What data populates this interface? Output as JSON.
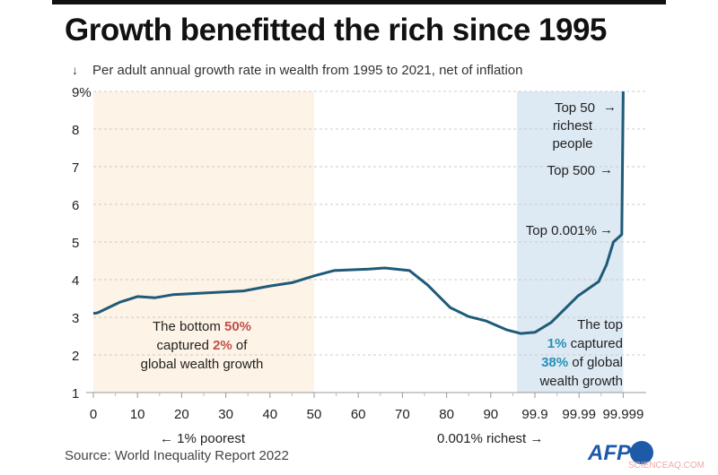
{
  "title": "Growth benefitted the rich since 1995",
  "chart_data": {
    "type": "line",
    "title": "Growth benefitted the rich since 1995",
    "ylabel": "Per adult annual growth rate in wealth from 1995 to 2021, net of inflation",
    "ylim": [
      1,
      9
    ],
    "y_ticks": [
      "9%",
      "8",
      "7",
      "6",
      "5",
      "4",
      "3",
      "2",
      "1"
    ],
    "x_ticks": [
      "0",
      "10",
      "20",
      "30",
      "40",
      "50",
      "60",
      "70",
      "80",
      "90",
      "99.9",
      "99.99",
      "99.999"
    ],
    "x_tick_values": [
      0,
      10,
      20,
      30,
      40,
      50,
      60,
      70,
      80,
      90,
      99.9,
      99.99,
      99.999
    ],
    "grid": true,
    "series": [
      {
        "color": "#1f5a78",
        "points": [
          [
            0,
            3.1
          ],
          [
            1,
            3.12
          ],
          [
            6,
            3.4
          ],
          [
            10,
            3.55
          ],
          [
            14,
            3.52
          ],
          [
            18,
            3.6
          ],
          [
            34,
            3.7
          ],
          [
            40,
            3.83
          ],
          [
            45,
            3.92
          ],
          [
            50,
            4.1
          ],
          [
            54.5,
            4.24
          ],
          [
            62.4,
            4.28
          ],
          [
            66,
            4.31
          ],
          [
            71.6,
            4.24
          ],
          [
            75.7,
            3.86
          ],
          [
            80.8,
            3.26
          ],
          [
            85,
            3.02
          ],
          [
            89,
            2.9
          ],
          [
            93.5,
            2.67
          ],
          [
            96.7,
            2.57
          ],
          [
            99.9,
            2.6
          ],
          [
            99.933,
            2.86
          ],
          [
            99.988,
            3.57
          ],
          [
            99.994,
            3.95
          ],
          [
            99.9956,
            4.4
          ],
          [
            99.997,
            5.0
          ],
          [
            99.9987,
            5.2
          ],
          [
            99.999,
            9.0
          ]
        ]
      }
    ],
    "shaded_regions": [
      {
        "from": 0,
        "to": 50,
        "color": "#fdf3e6"
      },
      {
        "from": 95.9,
        "to": 99.999,
        "color": "#dde9f3"
      }
    ],
    "annotations": {
      "bottom": {
        "line1a": "The bottom ",
        "line1b": "50%",
        "line2a": "captured ",
        "line2b": "2%",
        "line2c": " of",
        "line3": "global wealth growth",
        "color": "#c0504d"
      },
      "top": {
        "line1": "The top",
        "line2a": "1%",
        "line2b": " captured",
        "line3a": "38%",
        "line3b": " of global",
        "line4": "wealth growth",
        "color": "#2a8fb5"
      },
      "top50": [
        "Top 50",
        "richest",
        "people"
      ],
      "top500": "Top 500",
      "top0001": "Top 0.001%",
      "poorest": "← 1% poorest",
      "richest": "0.001% richest →"
    }
  },
  "source": "Source: World Inequality Report 2022",
  "logo": "AFP",
  "watermark": "SCIENCEAQ.COM"
}
